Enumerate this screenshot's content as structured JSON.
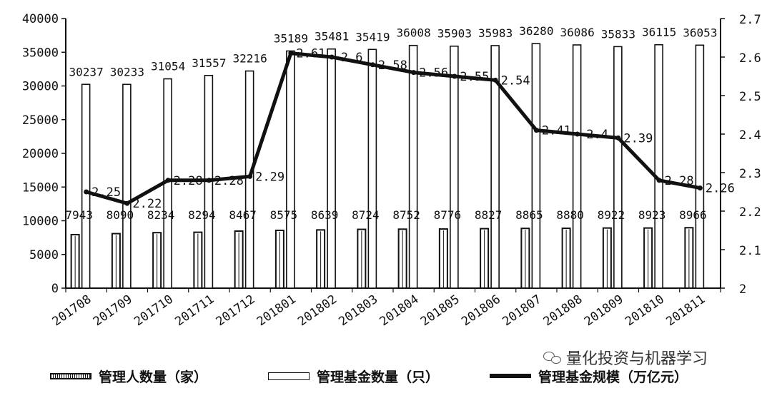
{
  "chart_data": {
    "type": "bar",
    "categories": [
      "201708",
      "201709",
      "201710",
      "201711",
      "201712",
      "201801",
      "201802",
      "201803",
      "201804",
      "201805",
      "201806",
      "201807",
      "201808",
      "201809",
      "201810",
      "201811"
    ],
    "series": [
      {
        "name": "管理人数量（家）",
        "type": "bar",
        "axis": "left",
        "style": "hatched",
        "values": [
          7943,
          8090,
          8234,
          8294,
          8467,
          8575,
          8639,
          8724,
          8752,
          8776,
          8827,
          8865,
          8880,
          8922,
          8923,
          8966
        ]
      },
      {
        "name": "管理基金数量（只）",
        "type": "bar",
        "axis": "left",
        "style": "hollow",
        "values": [
          30237,
          30233,
          31054,
          31557,
          32216,
          35189,
          35481,
          35419,
          36008,
          35903,
          35983,
          36280,
          36086,
          35833,
          36115,
          36053
        ]
      },
      {
        "name": "管理基金规模（万亿元）",
        "type": "line",
        "axis": "right",
        "values": [
          2.25,
          2.22,
          2.28,
          2.28,
          2.29,
          2.61,
          2.6,
          2.58,
          2.56,
          2.55,
          2.54,
          2.41,
          2.4,
          2.39,
          2.28,
          2.26
        ]
      }
    ],
    "y_left": {
      "ylim": [
        0,
        40000
      ],
      "ticks": [
        "0",
        "5000",
        "10000",
        "15000",
        "20000",
        "25000",
        "30000",
        "35000",
        "40000"
      ]
    },
    "y_right": {
      "ylim": [
        2,
        2.7
      ],
      "ticks": [
        "2",
        "2.1",
        "2.2",
        "2.3",
        "2.4",
        "2.5",
        "2.6",
        "2.7"
      ]
    },
    "title": "",
    "xlabel": "",
    "ylabel": "",
    "legend_placement": "bottom",
    "data_labels": {
      "managers": [
        "7943",
        "8090",
        "8234",
        "8294",
        "8467",
        "8575",
        "8639",
        "8724",
        "8752",
        "8776",
        "8827",
        "8865",
        "8880",
        "8922",
        "8923",
        "8966"
      ],
      "funds": [
        "30237",
        "30233",
        "31054",
        "31557",
        "32216",
        "35189",
        "35481",
        "35419",
        "36008",
        "35903",
        "35983",
        "36280",
        "36086",
        "35833",
        "36115",
        "36053"
      ],
      "scale": [
        "2.25",
        "2.22",
        "2.28",
        "2.28",
        "2.29",
        "2.61",
        "2.6",
        "2.58",
        "2.56",
        "2.55",
        "2.54",
        "2.41",
        "2.4",
        "2.39",
        "2.28",
        "2.26"
      ]
    }
  },
  "legend": {
    "managers": "管理人数量（家）",
    "funds": "管理基金数量（只）",
    "scale": "管理基金规模（万亿元）"
  },
  "watermark": {
    "text": "量化投资与机器学习",
    "icon": "wechat-icon"
  }
}
